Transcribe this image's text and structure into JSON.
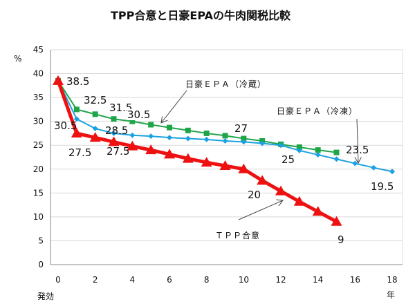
{
  "chart_data": {
    "type": "line",
    "title": "TPP合意と日豪EPAの牛肉関税比較",
    "ylabel": "%",
    "xlabel_start": "発効",
    "xlabel_unit": "年",
    "ylim": [
      0,
      45
    ],
    "yticks": [
      0,
      5,
      10,
      15,
      20,
      25,
      30,
      35,
      40,
      45
    ],
    "xlim": [
      0,
      18
    ],
    "xticks": [
      0,
      2,
      4,
      6,
      8,
      10,
      12,
      14,
      16,
      18
    ],
    "grid": "horizontal",
    "series": [
      {
        "name": "日豪ＥＰＡ（冷蔵）",
        "color": "#1EA548",
        "marker": "square",
        "x": [
          0,
          1,
          2,
          3,
          4,
          5,
          6,
          7,
          8,
          9,
          10,
          11,
          12,
          13,
          14,
          15
        ],
        "values": [
          38.5,
          32.5,
          31.5,
          30.5,
          30,
          29.3,
          28.7,
          28.1,
          27.5,
          27,
          26.4,
          25.9,
          25.2,
          24.6,
          24,
          23.5
        ]
      },
      {
        "name": "日豪ＥＰＡ（冷凍）",
        "color": "#1BA1E2",
        "marker": "diamond",
        "x": [
          0,
          1,
          2,
          3,
          4,
          5,
          6,
          7,
          8,
          9,
          10,
          11,
          12,
          13,
          14,
          15,
          16,
          17,
          18
        ],
        "values": [
          38.5,
          30.5,
          28.5,
          27.5,
          27.1,
          26.9,
          26.6,
          26.4,
          26.2,
          25.9,
          25.7,
          25.4,
          25,
          23.9,
          23,
          22.1,
          21.2,
          20.3,
          19.5
        ]
      },
      {
        "name": "ＴＰＰ合意",
        "color": "#EE1111",
        "marker": "triangle",
        "x": [
          0,
          1,
          2,
          3,
          4,
          5,
          6,
          7,
          8,
          9,
          10,
          11,
          12,
          13,
          14,
          15
        ],
        "values": [
          38.5,
          27.5,
          26.6,
          25.7,
          24.8,
          24,
          23.1,
          22.2,
          21.4,
          20.7,
          20,
          17.6,
          15.4,
          13.2,
          11.1,
          9
        ]
      }
    ],
    "data_labels": [
      "38.5",
      "32.5",
      "31.5",
      "30.5",
      "30.5",
      "28.5",
      "27.5",
      "27.5",
      "27",
      "25",
      "23.5",
      "19.5",
      "20",
      "9"
    ]
  }
}
